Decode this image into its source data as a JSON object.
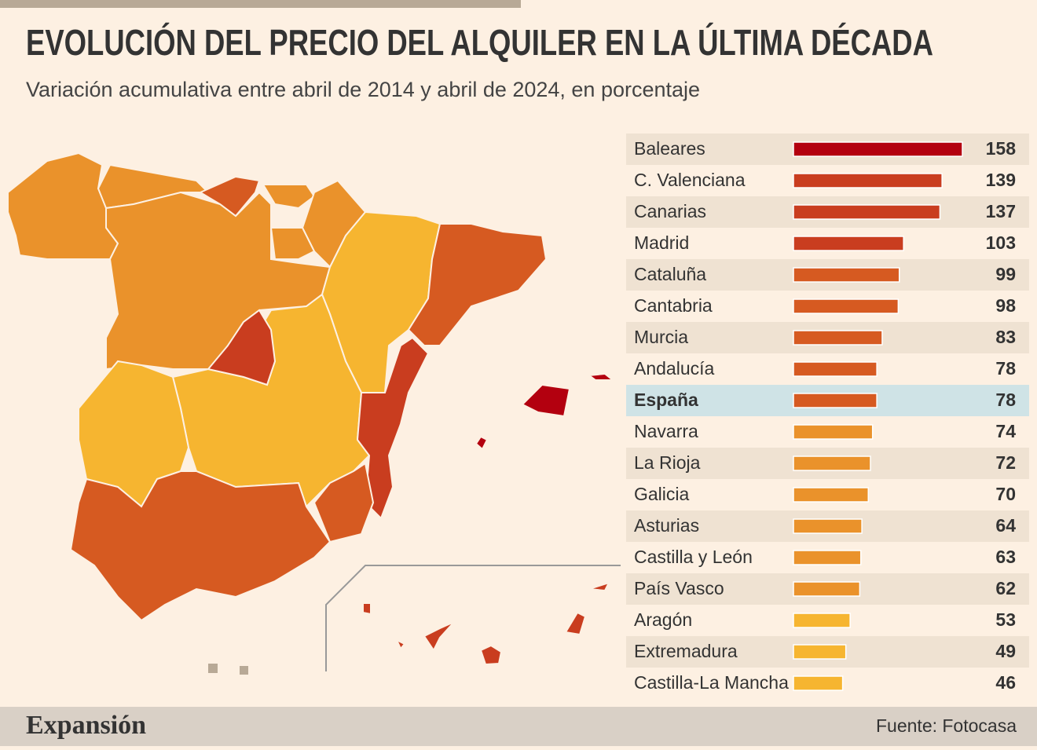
{
  "chart_data": {
    "type": "bar",
    "title": "EVOLUCIÓN DEL PRECIO DEL ALQUILER EN LA ÚLTIMA DÉCADA",
    "subtitle": "Variación acumulativa entre abril de 2014 y abril de 2024, en porcentaje",
    "categories": [
      "Baleares",
      "C. Valenciana",
      "Canarias",
      "Madrid",
      "Cataluña",
      "Cantabria",
      "Murcia",
      "Andalucía",
      "España",
      "Navarra",
      "La Rioja",
      "Galicia",
      "Asturias",
      "Castilla y León",
      "País Vasco",
      "Aragón",
      "Extremadura",
      "Castilla-La Mancha"
    ],
    "values": [
      158,
      139,
      137,
      103,
      99,
      98,
      83,
      78,
      78,
      74,
      72,
      70,
      64,
      63,
      62,
      53,
      49,
      46
    ],
    "colors": [
      "#b3000f",
      "#c93d1f",
      "#c93d1f",
      "#c93d1f",
      "#d65a21",
      "#d65a21",
      "#d65a21",
      "#d65a21",
      "#d65a21",
      "#ea922b",
      "#ea922b",
      "#ea922b",
      "#ea922b",
      "#ea922b",
      "#ea922b",
      "#f6b530",
      "#f6b530",
      "#f6b530"
    ],
    "highlight_index": 8,
    "source": "Fuente: Fotocasa",
    "brand": "Expansión"
  }
}
